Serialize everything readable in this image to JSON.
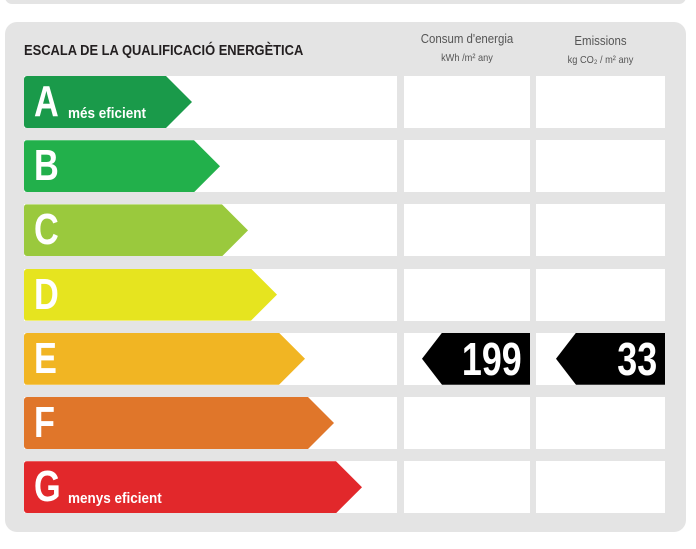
{
  "title": "ESCALA DE LA QUALIFICACIÓ ENERGÈTICA",
  "columns": {
    "consumption": {
      "label": "Consum d'energia",
      "unit": "kWh /m² any"
    },
    "emissions": {
      "label": "Emissions",
      "unit": "kg CO₂ / m² any"
    }
  },
  "ratings": [
    {
      "letter": "A",
      "label": "més eficient",
      "color": "#1a9a4a"
    },
    {
      "letter": "B",
      "label": "",
      "color": "#22b04b"
    },
    {
      "letter": "C",
      "label": "",
      "color": "#9ac93d"
    },
    {
      "letter": "D",
      "label": "",
      "color": "#e6e41f"
    },
    {
      "letter": "E",
      "label": "",
      "color": "#f1b523"
    },
    {
      "letter": "F",
      "label": "",
      "color": "#e0762a"
    },
    {
      "letter": "G",
      "label": "menys eficient",
      "color": "#e2282b"
    }
  ],
  "result": {
    "rating": "E",
    "consumption": "199",
    "emissions": "33"
  }
}
